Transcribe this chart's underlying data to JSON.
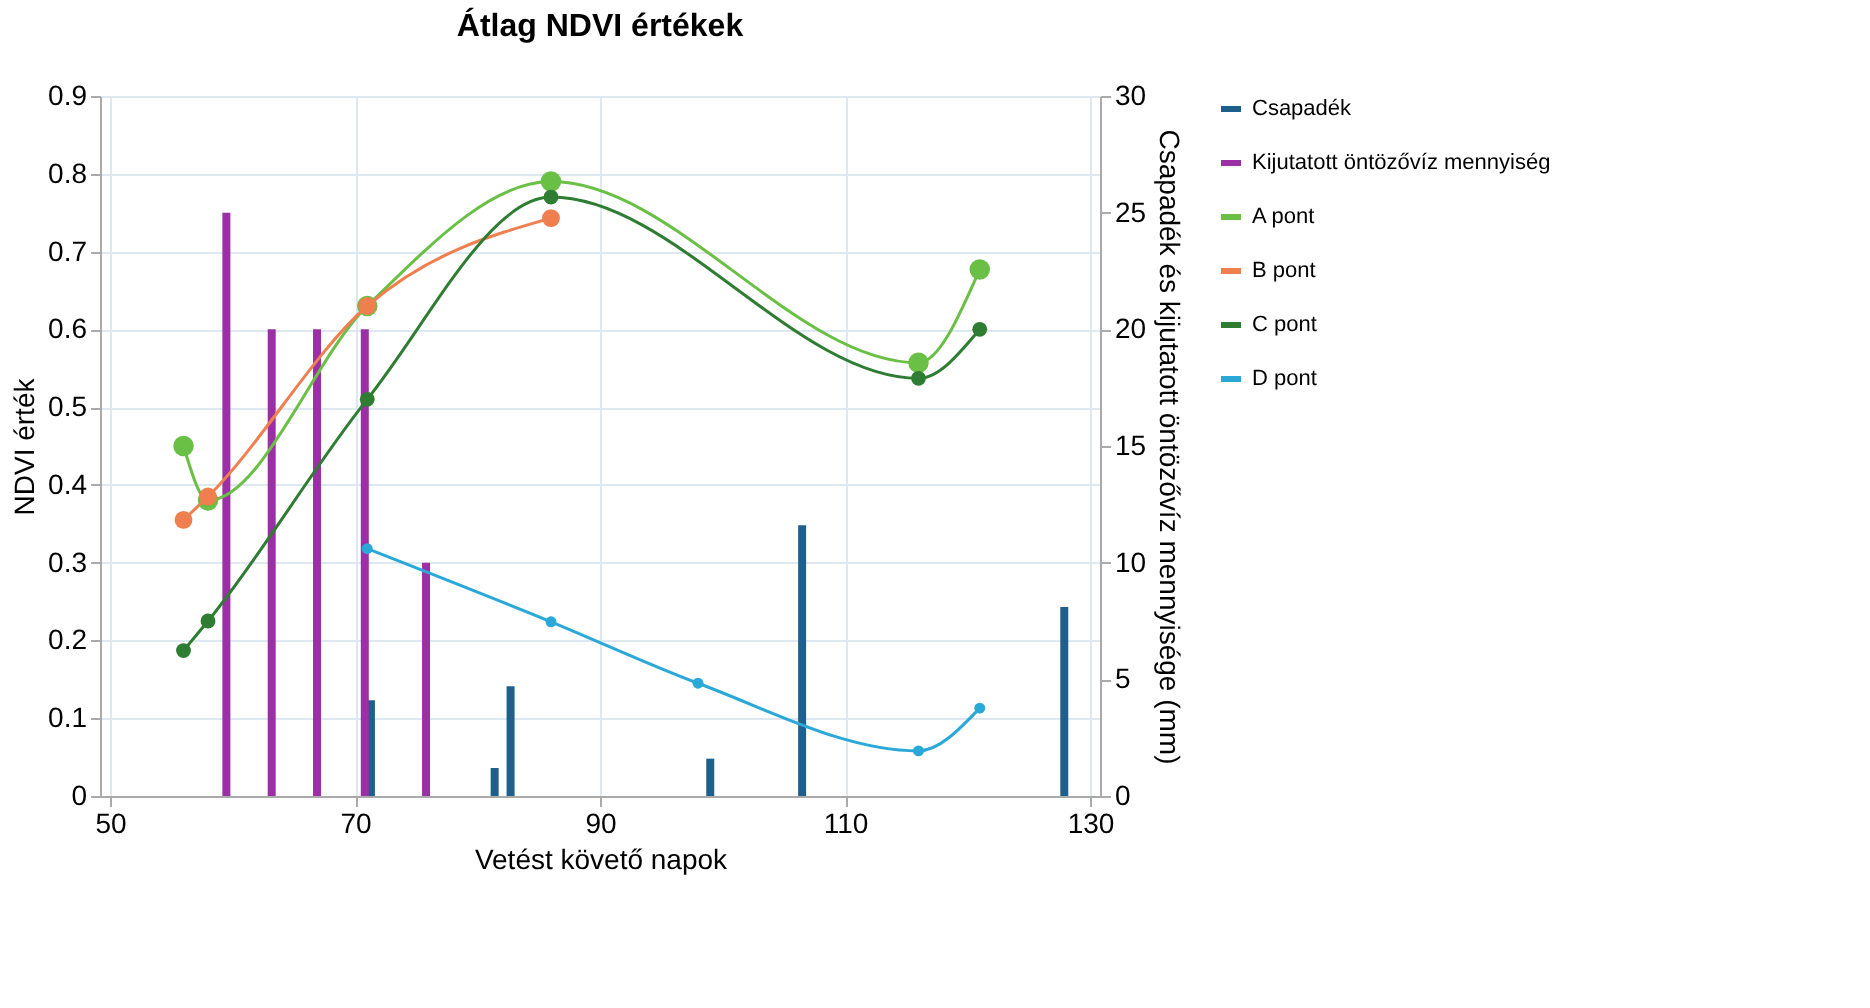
{
  "chart_data": {
    "type": "line",
    "title": "Átlag NDVI értékek",
    "xlabel": "Vetést követő napok",
    "ylabel": "NDVI érték",
    "y2label": "Csapadék és kijutatott öntözővíz mennyisége (mm)",
    "xlim": [
      50,
      130
    ],
    "xticks": [
      50,
      70,
      90,
      110,
      130
    ],
    "ylim": [
      0,
      0.9
    ],
    "yticks": [
      0,
      0.1,
      0.2,
      0.3,
      0.4,
      0.5,
      0.6,
      0.7,
      0.8,
      0.9
    ],
    "y2lim": [
      0,
      30
    ],
    "y2ticks": [
      0,
      5,
      10,
      15,
      20,
      25,
      30
    ],
    "grid": true,
    "legend": "right",
    "marker": "circle",
    "line_style": "solid",
    "series": [
      {
        "name": "Csapadék",
        "type": "bar",
        "axis": "y2",
        "color": "#1f5f8b",
        "x": [
          71.3,
          81.4,
          82.7,
          99,
          106.5,
          127.9
        ],
        "values": [
          4.1,
          1.2,
          4.7,
          1.6,
          11.6,
          8.1
        ]
      },
      {
        "name": "Kijutatott öntözővíz mennyiség",
        "type": "bar",
        "axis": "y2",
        "color": "#9b2fa5",
        "x": [
          59.5,
          63.2,
          66.9,
          70.8,
          75.8
        ],
        "values": [
          25,
          20,
          20,
          20,
          10
        ]
      },
      {
        "name": "A pont",
        "type": "line",
        "color": "#6abf45",
        "x": [
          56,
          58,
          71,
          86,
          116,
          121
        ],
        "values": [
          0.45,
          0.38,
          0.63,
          0.79,
          0.557,
          0.677
        ]
      },
      {
        "name": "B pont",
        "type": "line",
        "color": "#f07f4f",
        "x": [
          56,
          58,
          71,
          86
        ],
        "values": [
          0.355,
          0.385,
          0.63,
          0.743
        ]
      },
      {
        "name": "C pont",
        "type": "line",
        "color": "#2e7d32",
        "x": [
          56,
          58,
          71,
          86,
          116,
          121
        ],
        "values": [
          0.187,
          0.225,
          0.51,
          0.77,
          0.537,
          0.6
        ]
      },
      {
        "name": "D pont",
        "type": "line",
        "color": "#2aa8d8",
        "x": [
          71,
          86,
          98,
          116,
          121
        ],
        "values": [
          0.318,
          0.224,
          0.145,
          0.058,
          0.113
        ]
      }
    ]
  }
}
